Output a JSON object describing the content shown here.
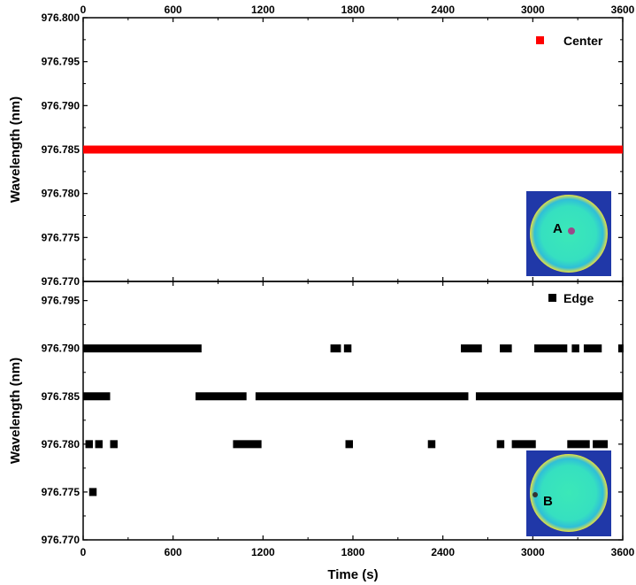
{
  "chart_data": [
    {
      "type": "line",
      "panel": "top",
      "ylabel": "Wavelength (nm)",
      "xlabel": "",
      "xlim": [
        0,
        3600
      ],
      "ylim": [
        976.77,
        976.8
      ],
      "x_ticks": [
        0,
        600,
        1200,
        1800,
        2400,
        3000,
        3600
      ],
      "x_tick_labels_top": [
        "0",
        "600",
        "1200",
        "1800",
        "2400",
        "3000",
        "3600"
      ],
      "y_ticks": [
        976.77,
        976.775,
        976.78,
        976.785,
        976.79,
        976.795,
        976.8
      ],
      "y_tick_labels": [
        "976.770",
        "976.775",
        "976.780",
        "976.785",
        "976.790",
        "976.795",
        "976.800"
      ],
      "legend_position": "top-right",
      "series": [
        {
          "name": "Center",
          "color": "#ff0000",
          "segments": [
            {
              "x0": 0,
              "x1": 3600,
              "y": 976.785
            }
          ]
        }
      ],
      "inset": {
        "label": "A",
        "position": "bottom-right"
      }
    },
    {
      "type": "scatter",
      "panel": "bottom",
      "ylabel": "Wavelength (nm)",
      "xlabel": "Time (s)",
      "xlim": [
        0,
        3600
      ],
      "ylim": [
        976.77,
        976.797
      ],
      "x_ticks": [
        0,
        600,
        1200,
        1800,
        2400,
        3000,
        3600
      ],
      "x_tick_labels": [
        "0",
        "600",
        "1200",
        "1800",
        "2400",
        "3000",
        "3600"
      ],
      "y_ticks": [
        976.77,
        976.775,
        976.78,
        976.785,
        976.79,
        976.795
      ],
      "y_tick_labels": [
        "976.770",
        "976.775",
        "976.780",
        "976.785",
        "976.790",
        "976.795"
      ],
      "legend_position": "top-right",
      "series": [
        {
          "name": "Edge",
          "color": "#000000",
          "segments": [
            {
              "x0": 0,
              "x1": 790,
              "y": 976.79
            },
            {
              "x0": 1650,
              "x1": 1720,
              "y": 976.79
            },
            {
              "x0": 1740,
              "x1": 1790,
              "y": 976.79
            },
            {
              "x0": 2520,
              "x1": 2660,
              "y": 976.79
            },
            {
              "x0": 2780,
              "x1": 2860,
              "y": 976.79
            },
            {
              "x0": 3010,
              "x1": 3230,
              "y": 976.79
            },
            {
              "x0": 3260,
              "x1": 3310,
              "y": 976.79
            },
            {
              "x0": 3340,
              "x1": 3460,
              "y": 976.79
            },
            {
              "x0": 3570,
              "x1": 3600,
              "y": 976.79
            },
            {
              "x0": 0,
              "x1": 180,
              "y": 976.785
            },
            {
              "x0": 750,
              "x1": 1090,
              "y": 976.785
            },
            {
              "x0": 1150,
              "x1": 2570,
              "y": 976.785
            },
            {
              "x0": 2620,
              "x1": 3600,
              "y": 976.785
            },
            {
              "x0": 15,
              "x1": 65,
              "y": 976.78
            },
            {
              "x0": 80,
              "x1": 130,
              "y": 976.78
            },
            {
              "x0": 180,
              "x1": 230,
              "y": 976.78
            },
            {
              "x0": 1000,
              "x1": 1190,
              "y": 976.78
            },
            {
              "x0": 1750,
              "x1": 1800,
              "y": 976.78
            },
            {
              "x0": 2300,
              "x1": 2350,
              "y": 976.78
            },
            {
              "x0": 2760,
              "x1": 2810,
              "y": 976.78
            },
            {
              "x0": 2860,
              "x1": 3020,
              "y": 976.78
            },
            {
              "x0": 3230,
              "x1": 3380,
              "y": 976.78
            },
            {
              "x0": 3400,
              "x1": 3500,
              "y": 976.78
            },
            {
              "x0": 40,
              "x1": 90,
              "y": 976.775
            }
          ]
        }
      ],
      "inset": {
        "label": "B",
        "position": "bottom-right"
      }
    }
  ]
}
